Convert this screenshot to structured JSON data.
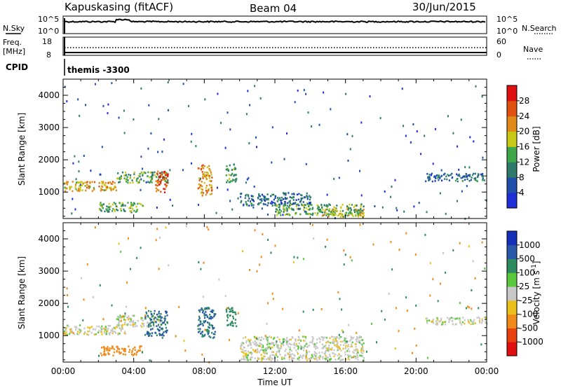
{
  "header": {
    "site": "Kapuskasing (fitACF)",
    "beam": "Beam 04",
    "date": "30/Jun/2015"
  },
  "noise_panel": {
    "left_label": "N.Sky",
    "right_label": "N.Search",
    "left_ticks": [
      "10^5",
      "10^0"
    ],
    "right_ticks": [
      "10^5",
      "10^0"
    ]
  },
  "freq_panel": {
    "left_label_line1": "Freq.",
    "left_label_line2": "[MHz]",
    "left_ticks": [
      "18",
      "8"
    ],
    "right_ticks": [
      "60",
      "0"
    ],
    "right_label": "Nave",
    "cpid_label": "CPID",
    "cpid_value": "themis -3300"
  },
  "chart_data": [
    {
      "type": "heatmap",
      "name_in_image": "Power",
      "ylabel": "Slant Range [km]",
      "xlabel": "",
      "ylim": [
        180,
        4500
      ],
      "xlim": [
        "00:00",
        "24:00"
      ],
      "yticks": [
        "1000",
        "2000",
        "3000",
        "4000"
      ],
      "colorbar": {
        "label": "Power [dB]",
        "ticks": [
          "4",
          "8",
          "12",
          "16",
          "20",
          "24",
          "28"
        ],
        "colors": [
          "#1f2fd6",
          "#1f4fa8",
          "#2d7a6a",
          "#3fa64a",
          "#c8c816",
          "#e08a1a",
          "#e05010",
          "#e01010"
        ],
        "range": [
          0,
          30
        ]
      },
      "regions": [
        {
          "t": [
            0.0,
            3.0
          ],
          "r": [
            1050,
            1350
          ],
          "level": 20
        },
        {
          "t": [
            3.0,
            6.0
          ],
          "r": [
            1300,
            1650
          ],
          "level": 14
        },
        {
          "t": [
            5.2,
            5.9
          ],
          "r": [
            1000,
            1700
          ],
          "level": 26
        },
        {
          "t": [
            7.6,
            8.4
          ],
          "r": [
            900,
            1900
          ],
          "level": 22
        },
        {
          "t": [
            9.2,
            9.8
          ],
          "r": [
            1300,
            1900
          ],
          "level": 12
        },
        {
          "t": [
            10.0,
            14.0
          ],
          "r": [
            600,
            1000
          ],
          "level": 8
        },
        {
          "t": [
            12.0,
            17.0
          ],
          "r": [
            300,
            650
          ],
          "level": 14
        },
        {
          "t": [
            14.5,
            17.0
          ],
          "r": [
            250,
            500
          ],
          "level": 18
        },
        {
          "t": [
            20.5,
            24.0
          ],
          "r": [
            1350,
            1600
          ],
          "level": 8
        },
        {
          "t": [
            2.0,
            4.5
          ],
          "r": [
            400,
            700
          ],
          "level": 14
        }
      ]
    },
    {
      "type": "heatmap",
      "name_in_image": "Velocity",
      "ylabel": "Slant Range [km]",
      "xlabel": "Time UT",
      "ylim": [
        180,
        4500
      ],
      "xlim": [
        "00:00",
        "24:00"
      ],
      "xticks": [
        "00:00",
        "04:00",
        "08:00",
        "12:00",
        "16:00",
        "20:00",
        "00:00"
      ],
      "yticks": [
        "1000",
        "2000",
        "3000",
        "4000"
      ],
      "colorbar": {
        "label": "Velocity [m s",
        "label_sup": "-1",
        "label_end": "]",
        "ticks": [
          "1000",
          "500",
          "100",
          "25",
          "-25",
          "-100",
          "-500",
          "-1000"
        ],
        "colors": [
          "#1530b8",
          "#2a58a8",
          "#2e8a60",
          "#5ac83c",
          "#c8c8c8",
          "#ecc01a",
          "#f08a1a",
          "#e84010",
          "#e01010"
        ]
      },
      "regions": [
        {
          "t": [
            0.0,
            3.5
          ],
          "r": [
            1050,
            1350
          ],
          "vel": 0
        },
        {
          "t": [
            3.0,
            5.5
          ],
          "r": [
            1300,
            1650
          ],
          "vel": 0
        },
        {
          "t": [
            4.6,
            5.9
          ],
          "r": [
            1000,
            1800
          ],
          "vel": 300
        },
        {
          "t": [
            7.6,
            8.6
          ],
          "r": [
            950,
            1900
          ],
          "vel": 300
        },
        {
          "t": [
            9.2,
            9.8
          ],
          "r": [
            1300,
            1900
          ],
          "vel": 150
        },
        {
          "t": [
            10.0,
            17.0
          ],
          "r": [
            250,
            1000
          ],
          "vel": 0
        },
        {
          "t": [
            20.5,
            24.0
          ],
          "r": [
            1350,
            1600
          ],
          "vel": 0
        },
        {
          "t": [
            2.0,
            4.5
          ],
          "r": [
            400,
            700
          ],
          "vel": -150
        }
      ]
    }
  ]
}
